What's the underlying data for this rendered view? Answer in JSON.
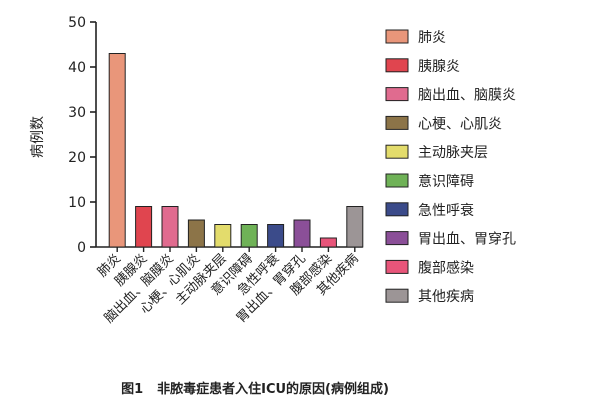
{
  "caption": {
    "number": "图1",
    "text": "非脓毒症患者入住ICU的原因(病例组成)"
  },
  "chart_data": {
    "type": "bar",
    "ylabel": "病例数",
    "ylim": [
      0,
      50
    ],
    "yticks": [
      0,
      10,
      20,
      30,
      40,
      50
    ],
    "grid": false,
    "legend_position": "right",
    "categories": [
      "肺炎",
      "胰腺炎",
      "脑出血、脑膜炎",
      "心梗、心肌炎",
      "主动脉夹层",
      "意识障碍",
      "急性呼衰",
      "胃出血、胃穿孔",
      "腹部感染",
      "其他疾病"
    ],
    "values": [
      43,
      9,
      9,
      6,
      5,
      5,
      5,
      6,
      2,
      9
    ],
    "colors": [
      "#e9967a",
      "#e0454f",
      "#e06b8f",
      "#8c7448",
      "#e3dc6c",
      "#6fb257",
      "#3b4b8a",
      "#8b4f98",
      "#e8557a",
      "#9c9596"
    ]
  }
}
